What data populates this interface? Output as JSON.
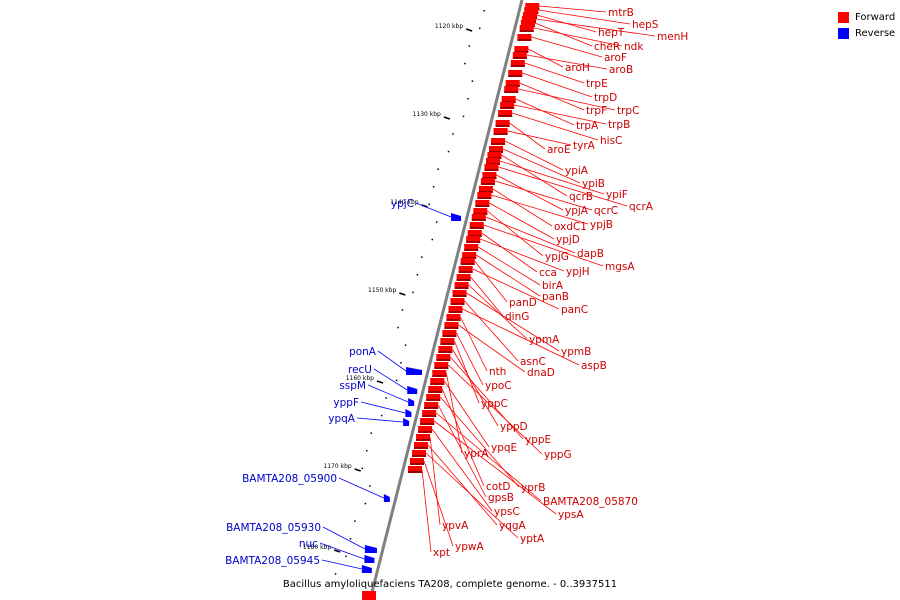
{
  "legend": {
    "forward_label": "Forward",
    "reverse_label": "Reverse",
    "forward_color": "#ff0000",
    "reverse_color": "#0000ff"
  },
  "caption": "Bacillus amyloliquefaciens TA208, complete genome. - 0..3937511",
  "ticks": [
    "1120 kbp",
    "1130 kbp",
    "1140 kbp",
    "1150 kbp",
    "1160 kbp",
    "1170 kbp",
    "1180 kbp"
  ],
  "forward_genes": [
    "mtrB",
    "hepS",
    "hepT",
    "menH",
    "cheR",
    "ndk",
    "aroF",
    "aroH",
    "aroB",
    "trpE",
    "trpD",
    "trpF",
    "trpC",
    "trpA",
    "trpB",
    "hisC",
    "aroE",
    "tyrA",
    "ypiA",
    "ypiB",
    "qcrB",
    "ypiF",
    "qcrA",
    "ypjA",
    "qcrC",
    "oxdC1",
    "ypjB",
    "ypjD",
    "ypjG",
    "dapB",
    "mgsA",
    "cca",
    "ypjH",
    "birA",
    "panB",
    "panD",
    "panC",
    "dinG",
    "ypmA",
    "ypmB",
    "asnC",
    "aspB",
    "nth",
    "dnaD",
    "ypoC",
    "yppC",
    "yppD",
    "yppE",
    "yppG",
    "yprA",
    "ypqE",
    "cotD",
    "yprB",
    "gpsB",
    "BAMTA208_05870",
    "ypsA",
    "ypsC",
    "ypvA",
    "yqgA",
    "yptA",
    "ypwA",
    "xpt"
  ],
  "reverse_genes": [
    "ypjC",
    "ponA",
    "recU",
    "sspM",
    "yppF",
    "ypqA",
    "BAMTA208_05900",
    "BAMTA208_05930",
    "nuc",
    "BAMTA208_05945"
  ]
}
